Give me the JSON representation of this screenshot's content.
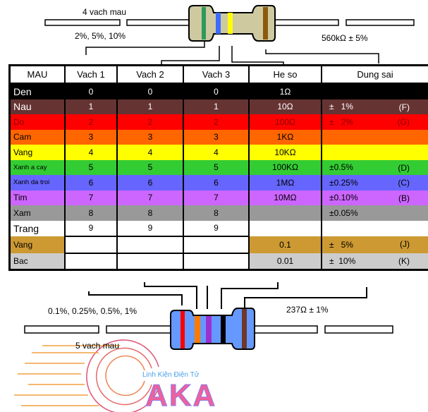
{
  "top_resistor": {
    "title": "4 vach mau",
    "tolerances": "2%, 5%, 10%",
    "example": "560kΩ ± 5%",
    "bands": [
      "#2e9a5a",
      "#3b6cff",
      "#ffff00",
      "#8b5a0c"
    ],
    "body_color": "#cfc9a0"
  },
  "bottom_resistor": {
    "title": "5 vach mau",
    "tolerances": "0.1%, 0.25%, 0.5%, 1%",
    "example": "237Ω ± 1%",
    "bands": [
      "#ff0000",
      "#ff7a00",
      "#9b30d0",
      "#000000",
      "#6b3a2a"
    ],
    "body_color": "#6699ff"
  },
  "table": {
    "headers": [
      "MAU",
      "Vach 1",
      "Vach 2",
      "Vach 3",
      "He so",
      "Dung sai"
    ],
    "rows": [
      {
        "name": "Den",
        "v1": "0",
        "v2": "0",
        "v3": "0",
        "mult": "1Ω",
        "tol": "",
        "code": "",
        "bg": "#000000",
        "fg": "#ffffff"
      },
      {
        "name": "Nau",
        "v1": "1",
        "v2": "1",
        "v3": "1",
        "mult": "10Ω",
        "tol": "±   1%",
        "code": "(F)",
        "bg": "#663333",
        "fg": "#ffffff"
      },
      {
        "name": "Do",
        "v1": "2",
        "v2": "2",
        "v3": "2",
        "mult": "100Ω",
        "tol": "±   2%",
        "code": "(G)",
        "bg": "#ff0000",
        "fg": "#8b0000"
      },
      {
        "name": "Cam",
        "v1": "3",
        "v2": "3",
        "v3": "3",
        "mult": "1KΩ",
        "tol": "",
        "code": "",
        "bg": "#ff6600",
        "fg": "#000000"
      },
      {
        "name": "Vang",
        "v1": "4",
        "v2": "4",
        "v3": "4",
        "mult": "10KΩ",
        "tol": "",
        "code": "",
        "bg": "#ffff00",
        "fg": "#000000"
      },
      {
        "name": "Xanh  a cay",
        "v1": "5",
        "v2": "5",
        "v3": "5",
        "mult": "100KΩ",
        "tol": "±0.5%",
        "code": "(D)",
        "bg": "#33cc33",
        "fg": "#000000"
      },
      {
        "name": "Xanh da troi",
        "v1": "6",
        "v2": "6",
        "v3": "6",
        "mult": "1MΩ",
        "tol": "±0.25%",
        "code": "(C)",
        "bg": "#6666ff",
        "fg": "#000000"
      },
      {
        "name": "Tim",
        "v1": "7",
        "v2": "7",
        "v3": "7",
        "mult": "10MΩ",
        "tol": "±0.10%",
        "code": "(B)",
        "bg": "#cc66ff",
        "fg": "#000000"
      },
      {
        "name": "Xam",
        "v1": "8",
        "v2": "8",
        "v3": "8",
        "mult": "",
        "tol": "±0.05%",
        "code": "",
        "bg": "#999999",
        "fg": "#000000"
      },
      {
        "name": "Trang",
        "v1": "9",
        "v2": "9",
        "v3": "9",
        "mult": "",
        "tol": "",
        "code": "",
        "bg": "#ffffff",
        "fg": "#000000"
      },
      {
        "name": "Vang",
        "v1": "",
        "v2": "",
        "v3": "",
        "mult": "0.1",
        "tol": "±   5%",
        "code": "(J)",
        "bg": "#cc9933",
        "fg": "#000000",
        "partial": true
      },
      {
        "name": "Bac",
        "v1": "",
        "v2": "",
        "v3": "",
        "mult": "0.01",
        "tol": "±  10%",
        "code": "(K)",
        "bg": "#cccccc",
        "fg": "#000000",
        "partial": true
      }
    ]
  },
  "logo": {
    "tagline": "Linh Kiện Điện Tử",
    "brand": "AKA"
  }
}
